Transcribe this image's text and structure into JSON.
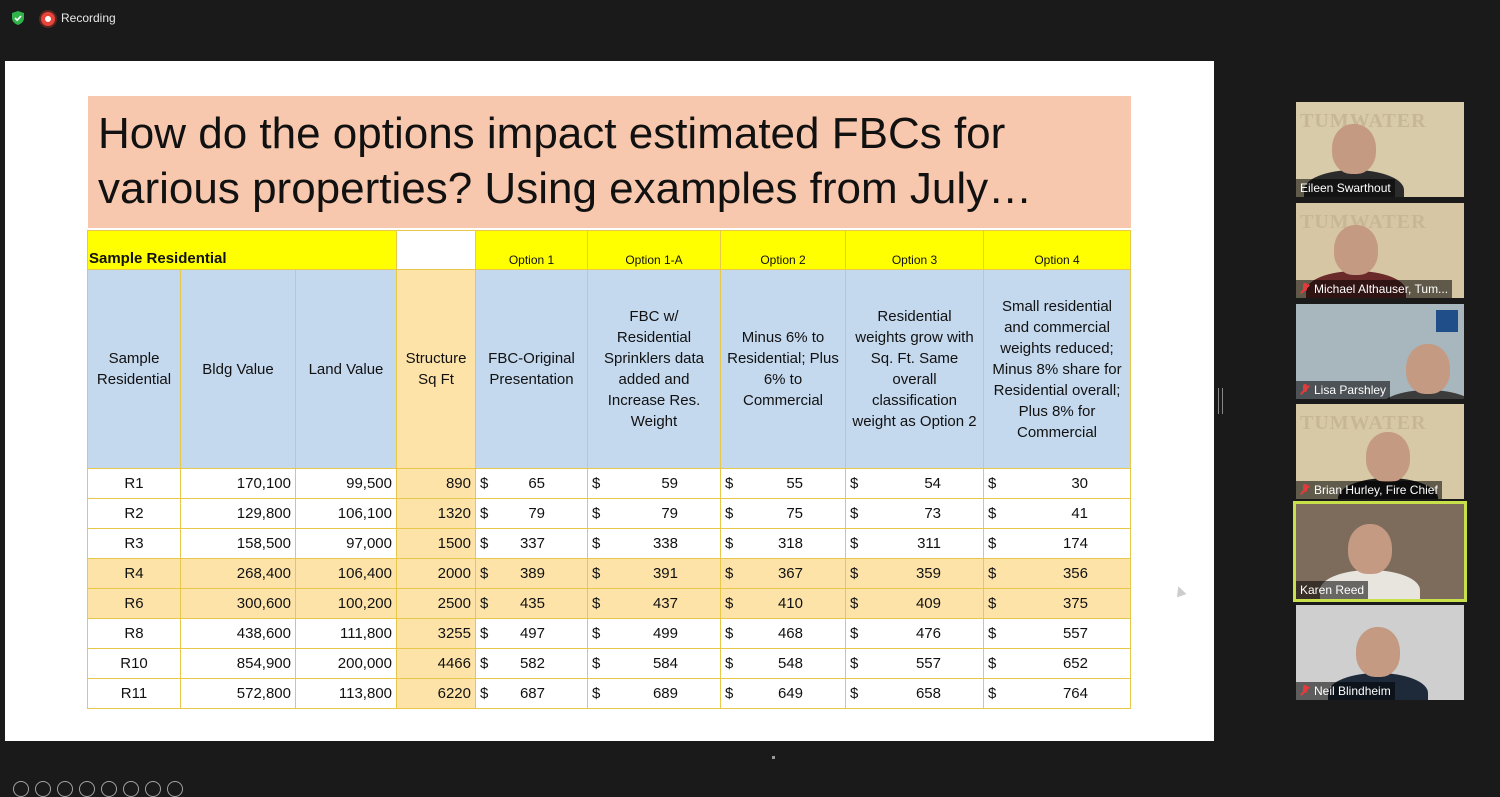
{
  "recording": {
    "label": "Recording"
  },
  "slide": {
    "title": "How do the options impact estimated FBCs for various properties?  Using examples from July…",
    "sample_label": "Sample Residential",
    "options": [
      "Option 1",
      "Option 1-A",
      "Option 2",
      "Option 3",
      "Option 4"
    ],
    "headers": [
      "Sample Residential",
      "Bldg Value",
      "Land Value",
      "Structure Sq Ft",
      "FBC-Original Presentation",
      "FBC w/ Residential Sprinklers data added and Increase Res. Weight",
      "Minus 6% to Residential; Plus 6% to Commercial",
      "Residential weights grow with Sq. Ft. Same overall classification weight as Option 2",
      "Small residential and commercial weights reduced; Minus 8% share for Residential overall; Plus 8% for Commercial"
    ],
    "currency": "$",
    "rows": [
      {
        "id": "R1",
        "bldg": "170,100",
        "land": "99,500",
        "sqft": "890",
        "o1": "65",
        "o1a": "59",
        "o2": "55",
        "o3": "54",
        "o4": "30",
        "highlight": false
      },
      {
        "id": "R2",
        "bldg": "129,800",
        "land": "106,100",
        "sqft": "1320",
        "o1": "79",
        "o1a": "79",
        "o2": "75",
        "o3": "73",
        "o4": "41",
        "highlight": false
      },
      {
        "id": "R3",
        "bldg": "158,500",
        "land": "97,000",
        "sqft": "1500",
        "o1": "337",
        "o1a": "338",
        "o2": "318",
        "o3": "311",
        "o4": "174",
        "highlight": false
      },
      {
        "id": "R4",
        "bldg": "268,400",
        "land": "106,400",
        "sqft": "2000",
        "o1": "389",
        "o1a": "391",
        "o2": "367",
        "o3": "359",
        "o4": "356",
        "highlight": true
      },
      {
        "id": "R6",
        "bldg": "300,600",
        "land": "100,200",
        "sqft": "2500",
        "o1": "435",
        "o1a": "437",
        "o2": "410",
        "o3": "409",
        "o4": "375",
        "highlight": true
      },
      {
        "id": "R8",
        "bldg": "438,600",
        "land": "111,800",
        "sqft": "3255",
        "o1": "497",
        "o1a": "499",
        "o2": "468",
        "o3": "476",
        "o4": "557",
        "highlight": false
      },
      {
        "id": "R10",
        "bldg": "854,900",
        "land": "200,000",
        "sqft": "4466",
        "o1": "582",
        "o1a": "584",
        "o2": "548",
        "o3": "557",
        "o4": "652",
        "highlight": false
      },
      {
        "id": "R11",
        "bldg": "572,800",
        "land": "113,800",
        "sqft": "6220",
        "o1": "687",
        "o1a": "689",
        "o2": "649",
        "o3": "658",
        "o4": "764",
        "highlight": false
      }
    ]
  },
  "participants": [
    {
      "name": "Eileen Swarthout",
      "muted": false,
      "active": false,
      "background": "TUMWATER",
      "bg_color": "#d8cba9",
      "shirt_color": "#2b2b2b"
    },
    {
      "name": "Michael Althauser, Tum...",
      "muted": true,
      "active": false,
      "background": "TUMWATER",
      "bg_color": "#d6c6a3",
      "shirt_color": "#6b2a2a"
    },
    {
      "name": "Lisa Parshley",
      "muted": true,
      "active": false,
      "background": "",
      "bg_color": "#a8b6bd",
      "shirt_color": "#3c3c3c"
    },
    {
      "name": "Brian Hurley, Fire Chief",
      "muted": true,
      "active": false,
      "background": "TUMWATER",
      "bg_color": "#d8c9a6",
      "shirt_color": "#1c1c1c"
    },
    {
      "name": "Karen Reed",
      "muted": false,
      "active": true,
      "background": "",
      "bg_color": "#7d6b5c",
      "shirt_color": "#e8e4de"
    },
    {
      "name": "Neil Blindheim",
      "muted": true,
      "active": false,
      "background": "",
      "bg_color": "#cfcfcf",
      "shirt_color": "#1e2a3a"
    }
  ]
}
